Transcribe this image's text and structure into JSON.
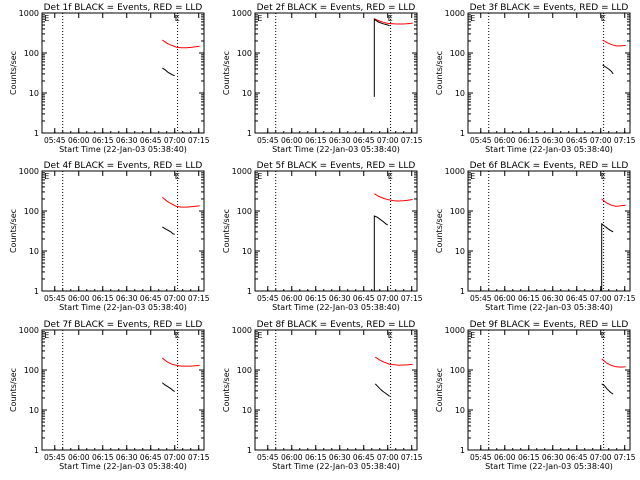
{
  "chart_data": {
    "type": "line",
    "x_ticks": [
      "05:45",
      "06:00",
      "06:15",
      "06:30",
      "06:45",
      "07:00",
      "07:15"
    ],
    "x_tick_hours": [
      5.75,
      6.0,
      6.25,
      6.5,
      6.75,
      7.0,
      7.25
    ],
    "xlim": [
      5.617,
      7.305
    ],
    "xlabel": "Start Time (22-Jan-03 05:38:40)",
    "ylabel": "Counts/sec",
    "yscale": "log",
    "ylim": [
      1,
      1000
    ],
    "y_ticks": [
      "1",
      "10",
      "100",
      "1000"
    ],
    "dotted_lines_at_hours": [
      5.833,
      7.03
    ],
    "marker_label": "E",
    "marker_label_hours": [
      5.64,
      7.0
    ],
    "series_colors": {
      "events": "#000000",
      "lld": "#ff0000"
    },
    "panels": [
      {
        "title": "Det 1f BLACK = Events, RED = LLD",
        "events": {
          "x": [
            6.87,
            6.9,
            6.93,
            6.96,
            6.98,
            7.0
          ],
          "y": [
            42,
            38,
            33,
            30,
            28,
            27
          ]
        },
        "lld": {
          "x": [
            6.87,
            6.92,
            6.97,
            7.02,
            7.07,
            7.12,
            7.17,
            7.22,
            7.26
          ],
          "y": [
            210,
            175,
            155,
            140,
            135,
            135,
            138,
            143,
            148
          ]
        }
      },
      {
        "title": "Det 2f BLACK = Events, RED = LLD",
        "events": {
          "x": [
            6.86,
            6.86,
            6.9,
            6.95,
            7.0,
            7.02
          ],
          "y": [
            8,
            700,
            600,
            540,
            500,
            480
          ]
        },
        "lld": {
          "x": [
            6.86,
            6.9,
            6.95,
            7.0,
            7.05,
            7.1,
            7.15,
            7.2,
            7.26
          ],
          "y": [
            720,
            650,
            590,
            550,
            540,
            530,
            530,
            540,
            560
          ]
        }
      },
      {
        "title": "Det 3f BLACK = Events, RED = LLD",
        "events": {
          "x": [
            7.02,
            7.05,
            7.08,
            7.11,
            7.13
          ],
          "y": [
            50,
            45,
            40,
            35,
            30
          ]
        },
        "lld": {
          "x": [
            7.02,
            7.07,
            7.12,
            7.17,
            7.22,
            7.26
          ],
          "y": [
            210,
            180,
            160,
            150,
            152,
            155
          ]
        }
      },
      {
        "title": "Det 4f BLACK = Events, RED = LLD",
        "events": {
          "x": [
            6.87,
            6.9,
            6.93,
            6.96,
            6.98,
            7.0
          ],
          "y": [
            40,
            36,
            33,
            30,
            27,
            26
          ]
        },
        "lld": {
          "x": [
            6.87,
            6.92,
            6.97,
            7.02,
            7.07,
            7.12,
            7.17,
            7.22,
            7.26
          ],
          "y": [
            220,
            175,
            150,
            130,
            125,
            125,
            128,
            132,
            136
          ]
        }
      },
      {
        "title": "Det 5f BLACK = Events, RED = LLD",
        "events": {
          "x": [
            6.86,
            6.86,
            6.89,
            6.92,
            6.95,
            6.98,
            7.0
          ],
          "y": [
            1,
            75,
            70,
            62,
            55,
            48,
            45
          ]
        },
        "lld": {
          "x": [
            6.86,
            6.91,
            6.96,
            7.01,
            7.06,
            7.11,
            7.16,
            7.21,
            7.26
          ],
          "y": [
            270,
            230,
            205,
            190,
            180,
            178,
            180,
            185,
            195
          ]
        }
      },
      {
        "title": "Det 6f BLACK = Events, RED = LLD",
        "events": {
          "x": [
            7.01,
            7.01,
            7.04,
            7.07,
            7.1,
            7.13
          ],
          "y": [
            1,
            48,
            42,
            37,
            33,
            30
          ]
        },
        "lld": {
          "x": [
            7.01,
            7.06,
            7.11,
            7.16,
            7.21,
            7.26
          ],
          "y": [
            200,
            160,
            140,
            130,
            135,
            140
          ]
        }
      },
      {
        "title": "Det 7f BLACK = Events, RED = LLD",
        "events": {
          "x": [
            6.87,
            6.9,
            6.93,
            6.96,
            6.98,
            7.0
          ],
          "y": [
            48,
            42,
            38,
            34,
            31,
            29
          ]
        },
        "lld": {
          "x": [
            6.87,
            6.92,
            6.97,
            7.02,
            7.07,
            7.12,
            7.17,
            7.22,
            7.26
          ],
          "y": [
            200,
            160,
            140,
            130,
            125,
            125,
            125,
            128,
            130
          ]
        }
      },
      {
        "title": "Det 8f BLACK = Events, RED = LLD",
        "events": {
          "x": [
            6.87,
            6.9,
            6.93,
            6.96,
            6.99,
            7.02
          ],
          "y": [
            45,
            38,
            32,
            28,
            25,
            22
          ]
        },
        "lld": {
          "x": [
            6.87,
            6.92,
            6.97,
            7.02,
            7.07,
            7.12,
            7.17,
            7.22,
            7.26
          ],
          "y": [
            210,
            175,
            155,
            140,
            135,
            132,
            133,
            136,
            140
          ]
        }
      },
      {
        "title": "Det 9f BLACK = Events, RED = LLD",
        "events": {
          "x": [
            7.01,
            7.04,
            7.07,
            7.1,
            7.13
          ],
          "y": [
            45,
            40,
            33,
            28,
            25
          ]
        },
        "lld": {
          "x": [
            7.01,
            7.06,
            7.11,
            7.16,
            7.21,
            7.26
          ],
          "y": [
            190,
            150,
            130,
            120,
            118,
            120
          ]
        }
      }
    ]
  }
}
